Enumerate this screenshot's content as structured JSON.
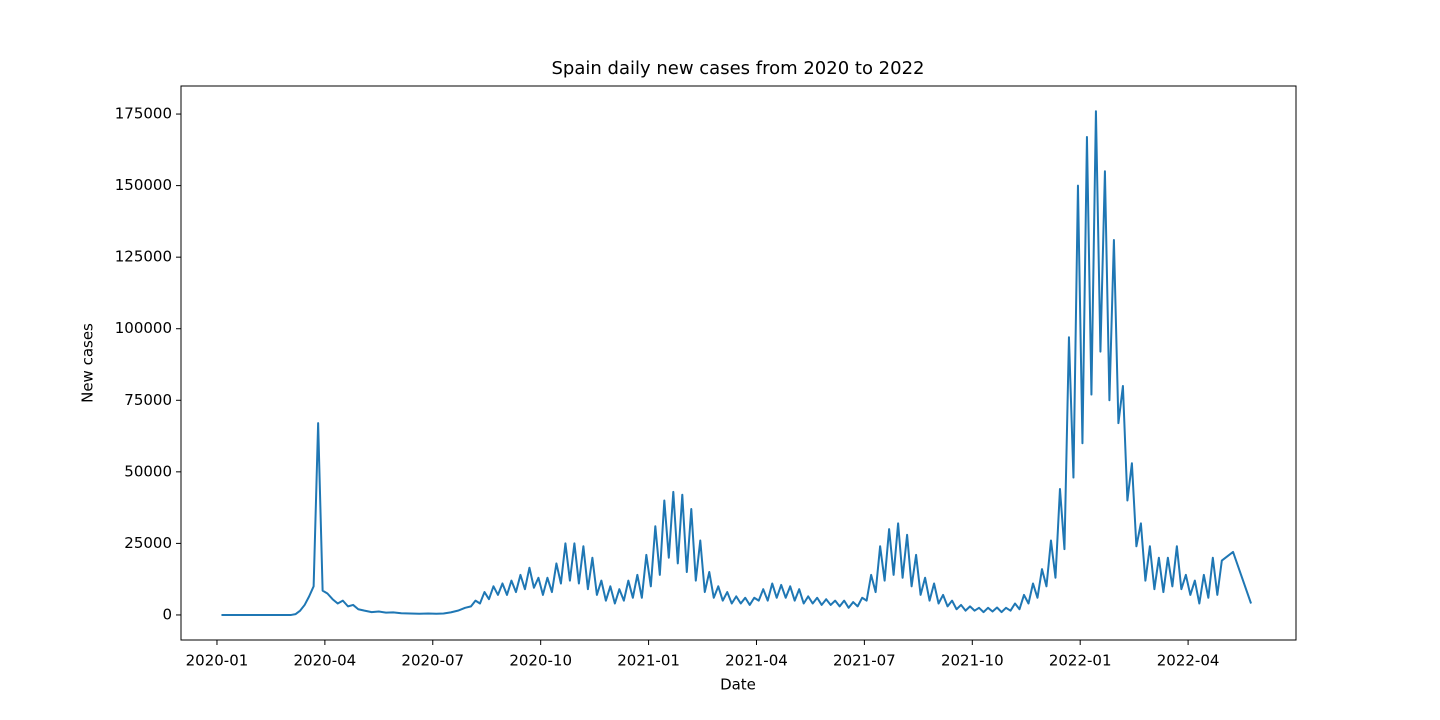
{
  "chart_data": {
    "type": "line",
    "title": "Spain daily new cases from 2020 to 2022",
    "x_label": "Date",
    "y_label": "New cases",
    "color": "#1f77b4",
    "grid": false,
    "xlim": [
      "2019-12",
      "2022-07"
    ],
    "ylim": [
      -8750,
      184800
    ],
    "xticks": [
      "2020-01",
      "2020-04",
      "2020-07",
      "2020-10",
      "2021-01",
      "2021-04",
      "2021-07",
      "2021-10",
      "2022-01",
      "2022-04"
    ],
    "yticks": [
      0,
      25000,
      50000,
      75000,
      100000,
      125000,
      150000,
      175000
    ],
    "x": [
      "2020-01",
      "2020-01",
      "2020-01",
      "2020-01",
      "2020-02",
      "2020-02",
      "2020-02",
      "2020-02",
      "2020-03",
      "2020-03",
      "2020-03",
      "2020-03",
      "2020-03",
      "2020-03",
      "2020-03",
      "2020-03",
      "2020-04",
      "2020-04",
      "2020-04",
      "2020-04",
      "2020-04",
      "2020-04",
      "2020-04",
      "2020-05",
      "2020-05",
      "2020-05",
      "2020-05",
      "2020-05",
      "2020-06",
      "2020-06",
      "2020-06",
      "2020-06",
      "2020-07",
      "2020-07",
      "2020-07",
      "2020-07",
      "2020-07",
      "2020-08",
      "2020-08",
      "2020-08",
      "2020-08",
      "2020-08",
      "2020-08",
      "2020-08",
      "2020-08",
      "2020-09",
      "2020-09",
      "2020-09",
      "2020-09",
      "2020-09",
      "2020-09",
      "2020-09",
      "2020-09",
      "2020-10",
      "2020-10",
      "2020-10",
      "2020-10",
      "2020-10",
      "2020-10",
      "2020-10",
      "2020-10",
      "2020-11",
      "2020-11",
      "2020-11",
      "2020-11",
      "2020-11",
      "2020-11",
      "2020-11",
      "2020-11",
      "2020-12",
      "2020-12",
      "2020-12",
      "2020-12",
      "2020-12",
      "2020-12",
      "2020-12",
      "2020-12",
      "2021-01",
      "2021-01",
      "2021-01",
      "2021-01",
      "2021-01",
      "2021-01",
      "2021-01",
      "2021-01",
      "2021-02",
      "2021-02",
      "2021-02",
      "2021-02",
      "2021-02",
      "2021-02",
      "2021-02",
      "2021-02",
      "2021-03",
      "2021-03",
      "2021-03",
      "2021-03",
      "2021-03",
      "2021-03",
      "2021-03",
      "2021-03",
      "2021-04",
      "2021-04",
      "2021-04",
      "2021-04",
      "2021-04",
      "2021-04",
      "2021-04",
      "2021-04",
      "2021-05",
      "2021-05",
      "2021-05",
      "2021-05",
      "2021-05",
      "2021-05",
      "2021-05",
      "2021-05",
      "2021-06",
      "2021-06",
      "2021-06",
      "2021-06",
      "2021-06",
      "2021-06",
      "2021-06",
      "2021-06",
      "2021-07",
      "2021-07",
      "2021-07",
      "2021-07",
      "2021-07",
      "2021-07",
      "2021-07",
      "2021-07",
      "2021-08",
      "2021-08",
      "2021-08",
      "2021-08",
      "2021-08",
      "2021-08",
      "2021-08",
      "2021-08",
      "2021-09",
      "2021-09",
      "2021-09",
      "2021-09",
      "2021-09",
      "2021-09",
      "2021-09",
      "2021-09",
      "2021-10",
      "2021-10",
      "2021-10",
      "2021-10",
      "2021-10",
      "2021-10",
      "2021-10",
      "2021-10",
      "2021-11",
      "2021-11",
      "2021-11",
      "2021-11",
      "2021-11",
      "2021-11",
      "2021-11",
      "2021-11",
      "2021-12",
      "2021-12",
      "2021-12",
      "2021-12",
      "2021-12",
      "2021-12",
      "2021-12",
      "2021-12",
      "2022-01",
      "2022-01",
      "2022-01",
      "2022-01",
      "2022-01",
      "2022-01",
      "2022-01",
      "2022-01",
      "2022-02",
      "2022-02",
      "2022-02",
      "2022-02",
      "2022-02",
      "2022-02",
      "2022-02",
      "2022-02",
      "2022-03",
      "2022-03",
      "2022-03",
      "2022-03",
      "2022-03",
      "2022-03",
      "2022-03",
      "2022-03",
      "2022-04",
      "2022-04",
      "2022-04",
      "2022-04",
      "2022-04",
      "2022-04",
      "2022-04",
      "2022-04",
      "2022-05",
      "2022-05"
    ],
    "values": [
      0,
      0,
      0,
      0,
      0,
      0,
      0,
      0,
      0,
      300,
      1500,
      3500,
      6500,
      10000,
      67000,
      8500,
      7500,
      5500,
      4000,
      5000,
      3000,
      3500,
      2000,
      1500,
      1000,
      1200,
      800,
      900,
      600,
      500,
      400,
      500,
      400,
      500,
      900,
      1500,
      2500,
      3000,
      5000,
      4000,
      8000,
      5500,
      10000,
      7000,
      11000,
      7000,
      12000,
      8000,
      14000,
      9000,
      16500,
      9500,
      13000,
      7000,
      13000,
      8000,
      18000,
      11000,
      25000,
      12000,
      25000,
      11000,
      24000,
      9000,
      20000,
      7000,
      12000,
      5000,
      10000,
      4000,
      9000,
      5000,
      12000,
      6000,
      14000,
      6000,
      21000,
      10000,
      31000,
      14000,
      40000,
      20000,
      43000,
      18000,
      42000,
      15000,
      37000,
      12000,
      26000,
      8000,
      15000,
      6000,
      10000,
      5000,
      8000,
      4000,
      6500,
      4000,
      6000,
      3500,
      6000,
      5000,
      9000,
      5000,
      11000,
      6000,
      10500,
      6000,
      10000,
      5000,
      9000,
      4000,
      6500,
      4000,
      6000,
      3500,
      5500,
      3500,
      5000,
      3000,
      5000,
      2500,
      4500,
      3000,
      6000,
      5000,
      14000,
      8000,
      24000,
      12000,
      30000,
      14000,
      32000,
      13000,
      28000,
      10000,
      21000,
      7000,
      13000,
      5000,
      11000,
      4000,
      7000,
      3000,
      5000,
      2000,
      3500,
      1500,
      3000,
      1500,
      2500,
      1000,
      2500,
      1200,
      2600,
      1000,
      2500,
      1500,
      4000,
      2000,
      7000,
      4000,
      11000,
      6000,
      16000,
      10000,
      26000,
      13000,
      44000,
      23000,
      97000,
      48000,
      150000,
      60000,
      167000,
      77000,
      176000,
      92000,
      155000,
      75000,
      131000,
      67000,
      80000,
      40000,
      53000,
      24000,
      32000,
      12000,
      24000,
      9000,
      20000,
      8000,
      20000,
      10000,
      24000,
      9000,
      14000,
      7000,
      12000,
      4000,
      14000,
      6000,
      20000,
      7000,
      19000,
      22000,
      4000
    ]
  }
}
